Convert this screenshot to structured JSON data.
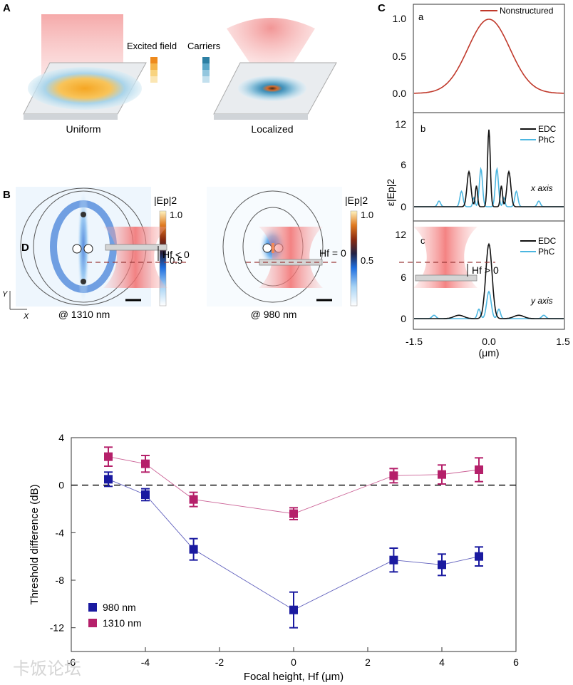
{
  "panel_labels": {
    "A": "A",
    "B": "B",
    "C": "C",
    "D": "D"
  },
  "panel_a": {
    "uniform_label": "Uniform",
    "localized_label": "Localized",
    "legend_excited": "Excited field",
    "legend_carriers": "Carriers",
    "excited_colors": [
      "#ee8a1c",
      "#f5b54a",
      "#f8d37f",
      "#fbe6b3"
    ],
    "carrier_colors": [
      "#2c7fa3",
      "#5aa7c8",
      "#93c6de",
      "#c3e0ee"
    ]
  },
  "panel_b": {
    "colorbar_title": "|Ep|2",
    "colorbar_max": "1.0",
    "colorbar_mid": "0.5",
    "left_caption": "@ 1310 nm",
    "right_caption": "@ 980 nm",
    "axis_y": "Y",
    "axis_x": "X"
  },
  "panel_c": {
    "ylabel": "ε|Ep|2",
    "xlabel": "(μm)",
    "xticks": [
      "-1.5",
      "0.0",
      "1.5"
    ],
    "sub_a": {
      "label": "a",
      "legend": "Nonstructured",
      "yticks": [
        "0.0",
        "0.5",
        "1.0"
      ]
    },
    "sub_b": {
      "label": "b",
      "legend_edc": "EDC",
      "legend_phc": "PhC",
      "axis_note": "x axis",
      "yticks": [
        "0",
        "6",
        "12"
      ]
    },
    "sub_c": {
      "label": "c",
      "legend_edc": "EDC",
      "legend_phc": "PhC",
      "axis_note": "y axis",
      "yticks": [
        "0",
        "6",
        "12"
      ]
    },
    "colors": {
      "nonstructured": "#c0392b",
      "edc": "#111111",
      "phc": "#4cb6e0"
    }
  },
  "panel_d_schematic": {
    "hf_neg": "Hf < 0",
    "hf_zero": "Hf = 0",
    "hf_pos": "Hf > 0"
  },
  "chart_data": {
    "type": "scatter",
    "title": "",
    "xlabel": "Focal height, Hf (μm)",
    "ylabel": "Threshold difference (dB)",
    "xlim": [
      -6,
      6
    ],
    "ylim": [
      -14,
      4
    ],
    "xticks": [
      -6,
      -4,
      -2,
      0,
      2,
      4,
      6
    ],
    "yticks": [
      4,
      0,
      -4,
      -8,
      -12
    ],
    "reference_line": 0,
    "series": [
      {
        "name": "980 nm",
        "color": "#1a1aa0",
        "x": [
          -5,
          -4,
          -2.7,
          0,
          2.7,
          4,
          5
        ],
        "y": [
          0.5,
          -0.8,
          -5.4,
          -10.5,
          -6.3,
          -6.7,
          -6.0
        ],
        "err": [
          0.6,
          0.5,
          0.9,
          1.5,
          1.0,
          0.9,
          0.8
        ]
      },
      {
        "name": "1310 nm",
        "color": "#b5206a",
        "x": [
          -5,
          -4,
          -2.7,
          0,
          2.7,
          4,
          5
        ],
        "y": [
          2.4,
          1.8,
          -1.2,
          -2.4,
          0.8,
          0.9,
          1.3
        ],
        "err": [
          0.8,
          0.7,
          0.6,
          0.5,
          0.6,
          0.8,
          1.0
        ]
      }
    ]
  },
  "watermark": "卡饭论坛"
}
